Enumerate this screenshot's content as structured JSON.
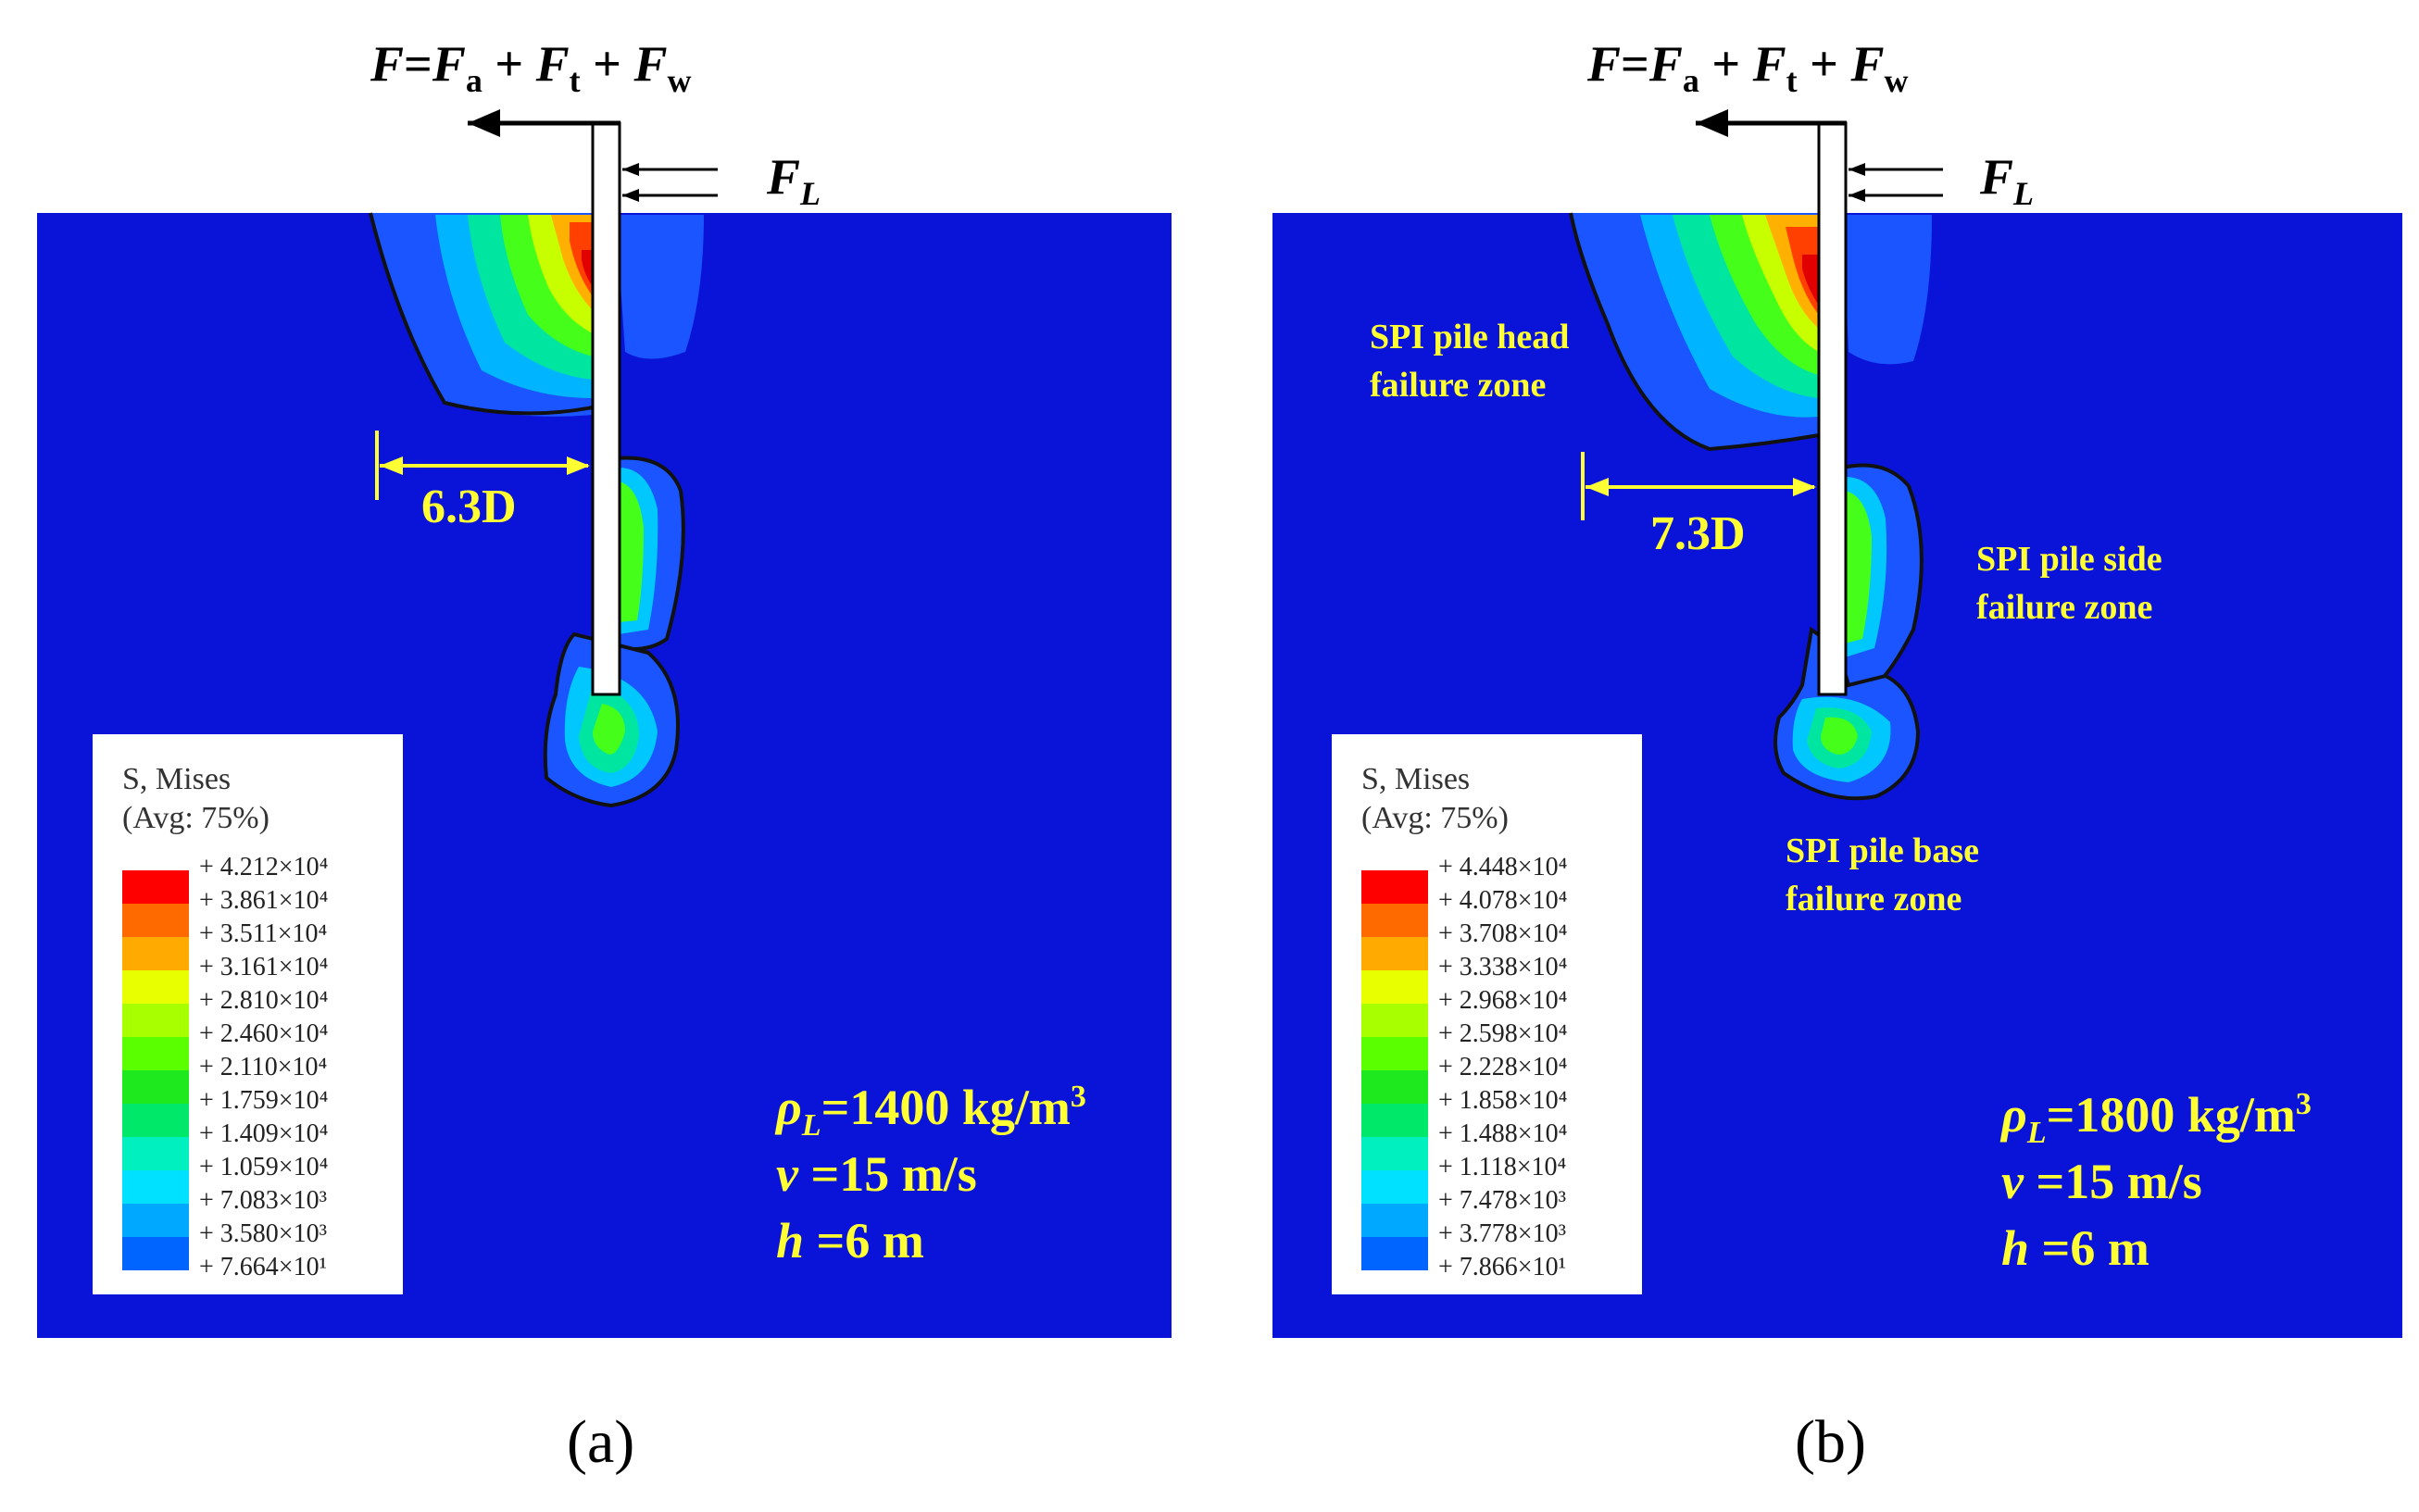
{
  "panels": [
    {
      "id": "a",
      "force_label": "F=Fa + Ft + Fw",
      "lateral_force_label": "FL",
      "distance_label": "6.3D",
      "zone_labels": [],
      "legend": {
        "title": "S, Mises",
        "subtitle": "(Avg: 75%)",
        "values": [
          "+ 4.212×10⁴",
          "+ 3.861×10⁴",
          "+ 3.511×10⁴",
          "+ 3.161×10⁴",
          "+ 2.810×10⁴",
          "+ 2.460×10⁴",
          "+ 2.110×10⁴",
          "+ 1.759×10⁴",
          "+ 1.409×10⁴",
          "+ 1.059×10⁴",
          "+ 7.083×10³",
          "+ 3.580×10³",
          "+ 7.664×10¹"
        ]
      },
      "params": {
        "rho": "ρL=1400 kg/m3",
        "v": "v =15 m/s",
        "h": "h =6 m"
      },
      "caption": "(a)"
    },
    {
      "id": "b",
      "force_label": "F=Fa + Ft + Fw",
      "lateral_force_label": "FL",
      "distance_label": "7.3D",
      "zone_labels": [
        {
          "line1": "SPI pile head",
          "line2": "failure zone"
        },
        {
          "line1": "SPI pile side",
          "line2": "failure zone"
        },
        {
          "line1": "SPI pile base",
          "line2": "failure zone"
        }
      ],
      "legend": {
        "title": "S, Mises",
        "subtitle": "(Avg: 75%)",
        "values": [
          "+ 4.448×10⁴",
          "+ 4.078×10⁴",
          "+ 3.708×10⁴",
          "+ 3.338×10⁴",
          "+ 2.968×10⁴",
          "+ 2.598×10⁴",
          "+ 2.228×10⁴",
          "+ 1.858×10⁴",
          "+ 1.488×10⁴",
          "+ 1.118×10⁴",
          "+ 7.478×10³",
          "+ 3.778×10³",
          "+ 7.866×10¹"
        ]
      },
      "params": {
        "rho": "ρL=1800 kg/m3",
        "v": "v =15 m/s",
        "h": "h =6 m"
      },
      "caption": "(b)"
    }
  ],
  "colors": {
    "soil": "#0a14d8",
    "contour_scale": [
      "#ff0000",
      "#ff6a00",
      "#ffaa00",
      "#e8ff00",
      "#a8ff00",
      "#5aff00",
      "#1ee81e",
      "#00e86a",
      "#00f0c0",
      "#00e0ff",
      "#00a8ff",
      "#0064ff",
      "#0014e6"
    ],
    "annotation_yellow": "#ffff33"
  }
}
